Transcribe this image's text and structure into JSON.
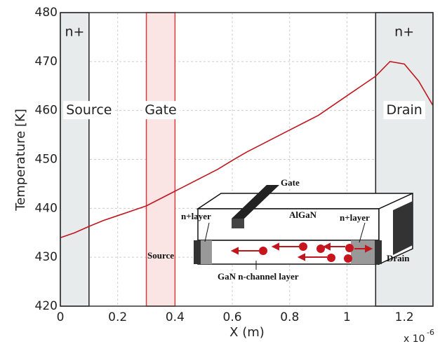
{
  "chart_data": {
    "type": "line",
    "xlabel": "X (m)",
    "ylabel": "Temperature [K]",
    "x_multiplier": "x 10",
    "x_multiplier_exp": "-6",
    "x": [
      0,
      0.05,
      0.1,
      0.15,
      0.2,
      0.25,
      0.3,
      0.35,
      0.4,
      0.45,
      0.5,
      0.55,
      0.6,
      0.65,
      0.7,
      0.75,
      0.8,
      0.85,
      0.9,
      0.95,
      1.0,
      1.05,
      1.1,
      1.15,
      1.2,
      1.25,
      1.3
    ],
    "series": [
      {
        "color": "#c0161e",
        "values": [
          434,
          435,
          436.3,
          437.5,
          438.5,
          439.5,
          440.5,
          442,
          443.5,
          445,
          446.5,
          448,
          449.8,
          451.5,
          453,
          454.5,
          456,
          457.5,
          459,
          461,
          463,
          465,
          467,
          470,
          469.5,
          466,
          461
        ]
      }
    ],
    "xlim": [
      0,
      1.3
    ],
    "xticks": [
      0,
      0.2,
      0.4,
      0.6,
      0.8,
      1,
      1.2
    ],
    "ylim": [
      420,
      480
    ],
    "yticks": [
      420,
      430,
      440,
      450,
      460,
      470,
      480
    ],
    "grid": true,
    "regions": [
      {
        "label": "n+",
        "x": [
          0,
          0.1
        ],
        "fill": "#e8ebeb",
        "stroke": "#222"
      },
      {
        "x": [
          0.3,
          0.4
        ],
        "fill": "#fbe4e4",
        "stroke": "#d23c3c"
      },
      {
        "label": "n+",
        "x": [
          1.1,
          1.3
        ],
        "fill": "#e8ebeb",
        "stroke": "#222"
      }
    ],
    "region_labels": [
      {
        "text": "Source",
        "x": 0.1
      },
      {
        "text": "Gate",
        "x": 0.35
      },
      {
        "text": "Drain",
        "x": 1.2
      }
    ],
    "region_label_y": 460,
    "inset_labels": {
      "gate": "Gate",
      "algan": "AlGaN",
      "nplus_left": "n+layer",
      "nplus_right": "n+layer",
      "source": "Source",
      "drain": "Drain",
      "channel": "GaN n-channel layer"
    }
  }
}
